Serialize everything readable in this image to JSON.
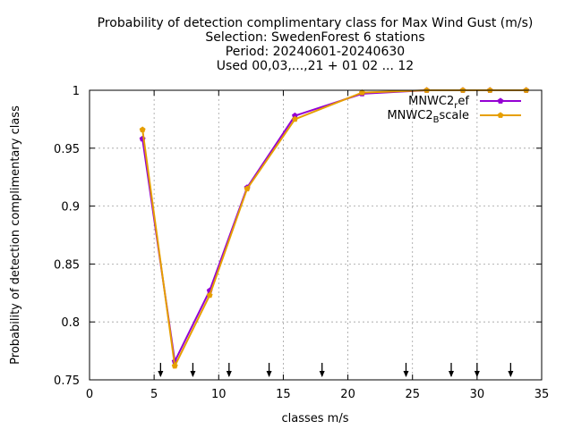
{
  "chart_data": {
    "type": "line",
    "title_lines": [
      "Probability of detection complimentary class  for Max Wind Gust (m/s)",
      "Selection: SwedenForest      6 stations",
      "Period: 20240601-20240630",
      "Used 00,03,...,21 + 01 02 ... 12"
    ],
    "xlabel": "classes m/s",
    "ylabel": "Probability of detection complimentary class",
    "xlim": [
      0,
      35
    ],
    "ylim": [
      0.75,
      1
    ],
    "xticks": [
      0,
      5,
      10,
      15,
      20,
      25,
      30,
      35
    ],
    "yticks": [
      0.75,
      0.8,
      0.85,
      0.9,
      0.95,
      1
    ],
    "ytick_labels": [
      "0.75",
      "0.8",
      "0.85",
      "0.9",
      "0.95",
      "1"
    ],
    "grid": true,
    "legend_position": "top-right",
    "series": [
      {
        "name_main": "MNWC2",
        "name_sub": "r",
        "name_rest": "ef",
        "color": "#9400d3",
        "x": [
          4.1,
          6.6,
          9.3,
          12.2,
          15.9,
          21.1,
          26.1,
          28.9,
          31.0,
          33.8
        ],
        "y": [
          0.958,
          0.766,
          0.827,
          0.916,
          0.978,
          0.997,
          1.0,
          1.0,
          1.0,
          1.0
        ]
      },
      {
        "name_main": "MNWC2",
        "name_sub": "B",
        "name_rest": "scale",
        "color": "#e69f00",
        "x": [
          4.1,
          6.6,
          9.3,
          12.2,
          15.9,
          21.1,
          26.1,
          28.9,
          31.0,
          33.8
        ],
        "y": [
          0.966,
          0.762,
          0.823,
          0.915,
          0.975,
          0.998,
          1.0,
          1.0,
          1.0,
          1.0
        ]
      }
    ],
    "class_boundaries": [
      5.5,
      8.0,
      10.8,
      13.9,
      18.0,
      24.5,
      28.0,
      30.0,
      32.6
    ]
  }
}
